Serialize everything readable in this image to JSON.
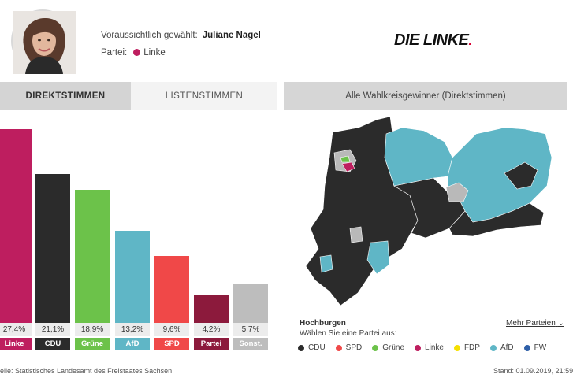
{
  "candidate": {
    "elected_label": "Voraussichtlich gewählt:",
    "elected_name": "Juliane Nagel",
    "party_label": "Partei:",
    "party_name": "Linke",
    "party_color": "#be1e5f"
  },
  "logo": {
    "text_main": "DIE LINKE",
    "text_end": "."
  },
  "tabs": [
    {
      "label": "DIREKTSTIMMEN",
      "active": true
    },
    {
      "label": "LISTENSTIMMEN",
      "active": false
    }
  ],
  "map_header": "Alle Wahlkreisgewinner (Direktstimmen)",
  "chart_data": {
    "type": "bar",
    "categories": [
      "Linke",
      "CDU",
      "Grüne",
      "AfD",
      "SPD",
      "Partei",
      "Sonst."
    ],
    "values": [
      27.4,
      21.1,
      18.9,
      13.2,
      9.6,
      4.2,
      5.7
    ],
    "value_labels": [
      "27,4%",
      "21,1%",
      "18,9%",
      "13,2%",
      "9,6%",
      "4,2%",
      "5,7%"
    ],
    "colors": [
      "#be1e5f",
      "#2b2b2b",
      "#6cc24a",
      "#5fb6c6",
      "#f04848",
      "#8c1a3c",
      "#bdbdbd"
    ],
    "title": "",
    "xlabel": "",
    "ylabel": "",
    "grid": false
  },
  "map": {
    "colors": {
      "CDU": "#2b2b2b",
      "AfD": "#5fb6c6",
      "Grüne": "#6cc24a",
      "Linke": "#be1e5f",
      "neutral": "#b9b9b9"
    }
  },
  "legend": {
    "title": "Hochburgen",
    "subtitle": "Wählen Sie eine Partei aus:",
    "more_label": "Mehr Parteien",
    "items": [
      {
        "label": "CDU",
        "color": "#2b2b2b"
      },
      {
        "label": "SPD",
        "color": "#f04848"
      },
      {
        "label": "Grüne",
        "color": "#6cc24a"
      },
      {
        "label": "Linke",
        "color": "#be1e5f"
      },
      {
        "label": "FDP",
        "color": "#f5e000"
      },
      {
        "label": "AfD",
        "color": "#5fb6c6"
      },
      {
        "label": "FW",
        "color": "#2e5fa8"
      }
    ]
  },
  "footer": {
    "source": "elle: Statistisches Landesamt des Freistaates Sachsen",
    "stand": "Stand: 01.09.2019, 21:59"
  }
}
